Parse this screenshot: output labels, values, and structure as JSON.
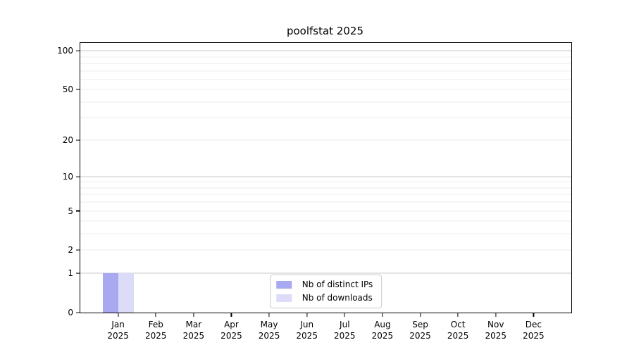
{
  "title": "poolfstat 2025",
  "chart_data": {
    "type": "bar",
    "title": "poolfstat 2025",
    "x_months": [
      "Jan",
      "Feb",
      "Mar",
      "Apr",
      "May",
      "Jun",
      "Jul",
      "Aug",
      "Sep",
      "Oct",
      "Nov",
      "Dec"
    ],
    "x_year": "2025",
    "series": [
      {
        "name": "Nb of distinct IPs",
        "color": "#a9a9f1",
        "values": [
          1,
          0,
          0,
          0,
          0,
          0,
          0,
          0,
          0,
          0,
          0,
          0
        ]
      },
      {
        "name": "Nb of downloads",
        "color": "#dcdcf8",
        "values": [
          1,
          0,
          0,
          0,
          0,
          0,
          0,
          0,
          0,
          0,
          0,
          0
        ]
      }
    ],
    "y_scale": "log1p",
    "ylim": [
      0,
      115
    ],
    "y_ticks": [
      0,
      1,
      2,
      5,
      10,
      20,
      50,
      100
    ],
    "grid_major": [
      1,
      10,
      100
    ],
    "grid_minor": [
      2,
      3,
      4,
      5,
      6,
      7,
      8,
      9,
      20,
      30,
      40,
      50,
      60,
      70,
      80,
      90
    ],
    "legend_position": "bottom-center",
    "colors": {
      "grid_major": "#c8c8c8",
      "grid_minor": "#ededed",
      "axis": "#000000",
      "legend_border": "#cccccc"
    }
  }
}
